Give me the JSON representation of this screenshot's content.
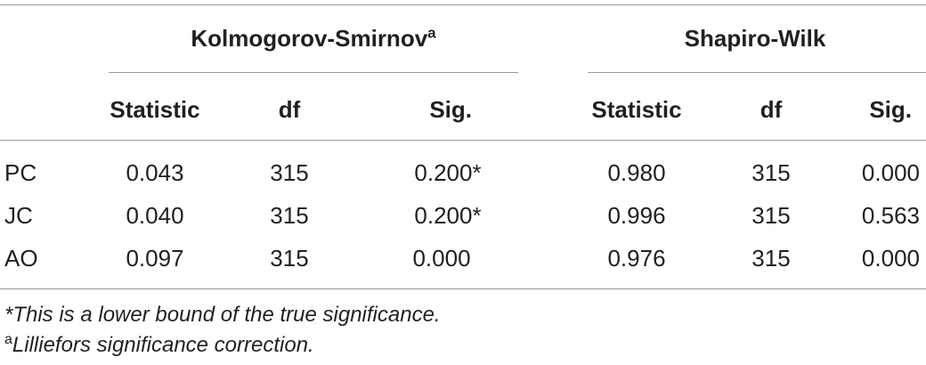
{
  "table": {
    "group_headers": {
      "ks": "Kolmogorov-Smirnov",
      "ks_marker": "a",
      "sw": "Shapiro-Wilk"
    },
    "sub_headers": [
      "Statistic",
      "df",
      "Sig.",
      "Statistic",
      "df",
      "Sig."
    ],
    "rows": [
      {
        "label": "PC",
        "cells": [
          "0.043",
          "315",
          "0.200*",
          "0.980",
          "315",
          "0.000"
        ]
      },
      {
        "label": "JC",
        "cells": [
          "0.040",
          "315",
          "0.200*",
          "0.996",
          "315",
          "0.563"
        ]
      },
      {
        "label": "AO",
        "cells": [
          "0.097",
          "315",
          "0.000",
          "0.976",
          "315",
          "0.000"
        ]
      }
    ]
  },
  "footnotes": {
    "star": "*This is a lower bound of the true significance.",
    "a_marker": "a",
    "a_text": "Lilliefors significance correction."
  }
}
